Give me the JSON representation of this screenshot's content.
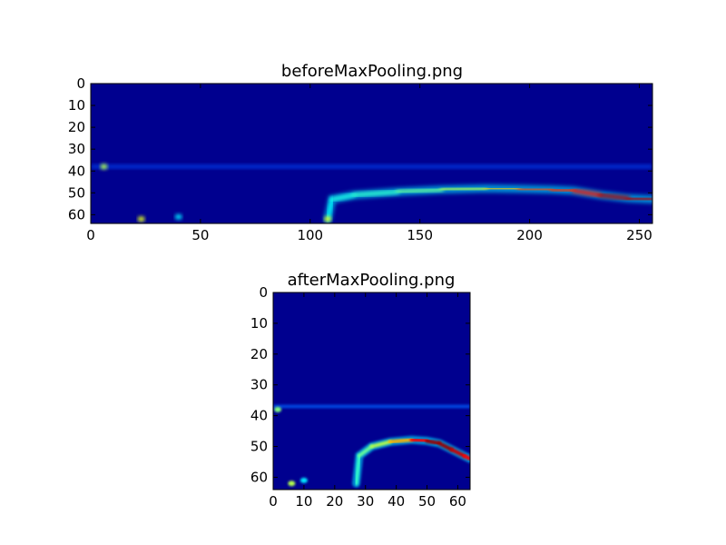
{
  "chart_data": [
    {
      "type": "heatmap",
      "title": "beforeMaxPooling.png",
      "xlabel": "",
      "ylabel": "",
      "xlim": [
        0,
        256
      ],
      "ylim": [
        64,
        0
      ],
      "x_ticks": [
        0,
        50,
        100,
        150,
        200,
        250
      ],
      "y_ticks": [
        0,
        10,
        20,
        30,
        40,
        50,
        60
      ],
      "colormap": "jet",
      "background_color": "#00008f",
      "features": [
        {
          "kind": "arc",
          "points": [
            [
              108,
              62
            ],
            [
              110,
              53
            ],
            [
              120,
              51
            ],
            [
              140,
              49.5
            ],
            [
              160,
              48.5
            ],
            [
              180,
              48
            ],
            [
              195,
              48.2
            ],
            [
              210,
              48.5
            ],
            [
              220,
              49
            ],
            [
              232,
              51
            ],
            [
              245,
              52.5
            ],
            [
              256,
              53
            ]
          ],
          "intensity": [
            0.35,
            0.4,
            0.4,
            0.45,
            0.5,
            0.6,
            0.75,
            0.85,
            0.8,
            0.9,
            1.0,
            0.9
          ]
        },
        {
          "kind": "band",
          "y": 38,
          "x_range": [
            0,
            256
          ],
          "intensity": 0.2
        },
        {
          "kind": "spot",
          "x": 6,
          "y": 38,
          "intensity": 0.55
        },
        {
          "kind": "spot",
          "x": 23,
          "y": 62,
          "intensity": 0.6
        },
        {
          "kind": "spot",
          "x": 40,
          "y": 61,
          "intensity": 0.35
        },
        {
          "kind": "spot",
          "x": 108,
          "y": 62,
          "intensity": 0.6
        }
      ]
    },
    {
      "type": "heatmap",
      "title": "afterMaxPooling.png",
      "xlabel": "",
      "ylabel": "",
      "xlim": [
        0,
        64
      ],
      "ylim": [
        64,
        0
      ],
      "x_ticks": [
        0,
        10,
        20,
        30,
        40,
        50,
        60
      ],
      "y_ticks": [
        0,
        10,
        20,
        30,
        40,
        50,
        60
      ],
      "colormap": "jet",
      "background_color": "#00008f",
      "features": [
        {
          "kind": "arc",
          "points": [
            [
              27,
              62
            ],
            [
              28,
              53
            ],
            [
              32,
              50
            ],
            [
              38,
              48.5
            ],
            [
              45,
              47.8
            ],
            [
              50,
              48.2
            ],
            [
              54,
              49
            ],
            [
              58,
              51
            ],
            [
              62,
              53
            ],
            [
              64,
              54
            ]
          ],
          "intensity": [
            0.4,
            0.45,
            0.5,
            0.6,
            0.8,
            0.95,
            1.0,
            0.95,
            0.9,
            0.85
          ]
        },
        {
          "kind": "band",
          "y": 37,
          "x_range": [
            0,
            64
          ],
          "intensity": 0.22
        },
        {
          "kind": "spot",
          "x": 1.5,
          "y": 38,
          "intensity": 0.5
        },
        {
          "kind": "spot",
          "x": 6,
          "y": 62,
          "intensity": 0.55
        },
        {
          "kind": "spot",
          "x": 10,
          "y": 61,
          "intensity": 0.35
        }
      ]
    }
  ]
}
